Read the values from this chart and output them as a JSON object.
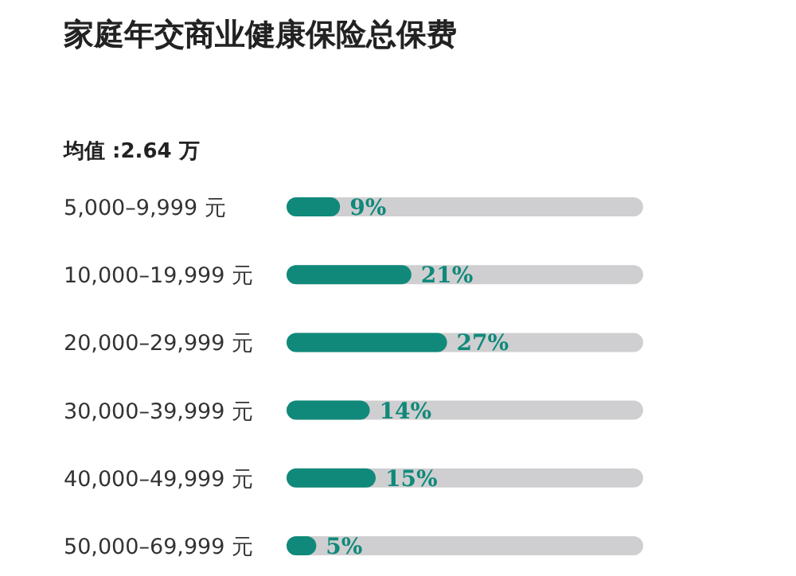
{
  "chart_data": {
    "type": "bar",
    "orientation": "horizontal",
    "title": "家庭年交商业健康保险总保费",
    "subtitle": "均值 :2.64 万",
    "categories": [
      "5,000–9,999 元",
      "10,000–19,999 元",
      "20,000–29,999 元",
      "30,000–39,999 元",
      "40,000–49,999 元",
      "50,000–69,999 元"
    ],
    "values": [
      9,
      21,
      27,
      14,
      15,
      5
    ],
    "value_labels": [
      "9%",
      "21%",
      "27%",
      "14%",
      "15%",
      "5%"
    ],
    "color": "#10897a",
    "tick_labels": "y"
  }
}
